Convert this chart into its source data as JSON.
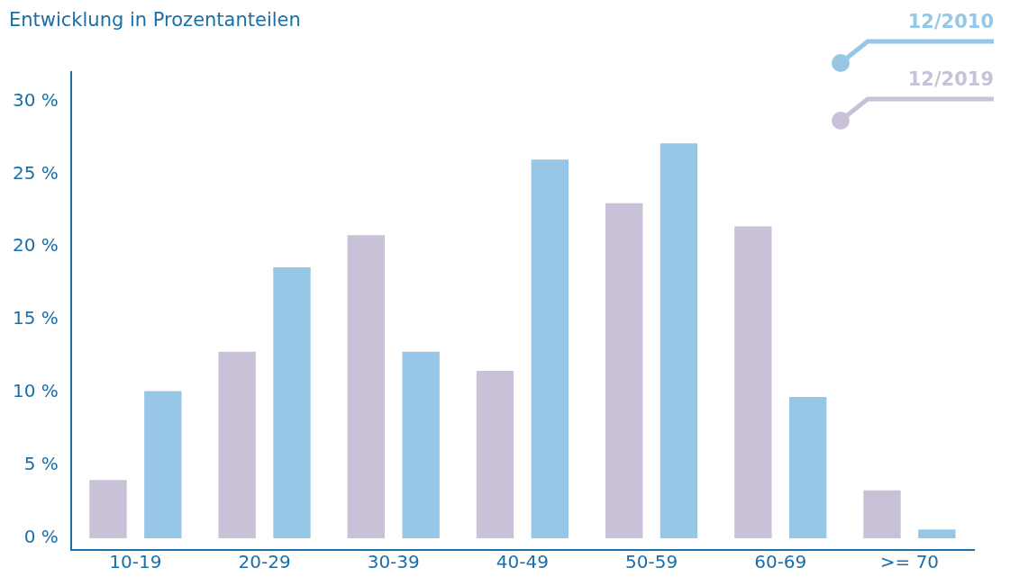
{
  "chart_data": {
    "type": "bar",
    "title": "Entwicklung in Prozentanteilen",
    "categories": [
      "10-19",
      "20-29",
      "30-39",
      "40-49",
      "50-59",
      "60-69",
      ">= 70"
    ],
    "series": [
      {
        "name": "12/2010",
        "color": "#97c6e6",
        "values": [
          10.1,
          18.6,
          12.8,
          26.0,
          27.1,
          9.7,
          0.6
        ]
      },
      {
        "name": "12/2019",
        "color": "#c9c1d8",
        "values": [
          4.0,
          12.8,
          20.8,
          11.5,
          23.0,
          21.4,
          3.3
        ]
      }
    ],
    "ylim": [
      -0.8,
      32
    ],
    "yticks": [
      {
        "value": 0,
        "label": "0 %"
      },
      {
        "value": 5,
        "label": "5 %"
      },
      {
        "value": 10,
        "label": "10 %"
      },
      {
        "value": 15,
        "label": "15 %"
      },
      {
        "value": 20,
        "label": "20 %"
      },
      {
        "value": 25,
        "label": "25 %"
      },
      {
        "value": 30,
        "label": "30 %"
      }
    ],
    "grid": false,
    "legend": "top right"
  }
}
